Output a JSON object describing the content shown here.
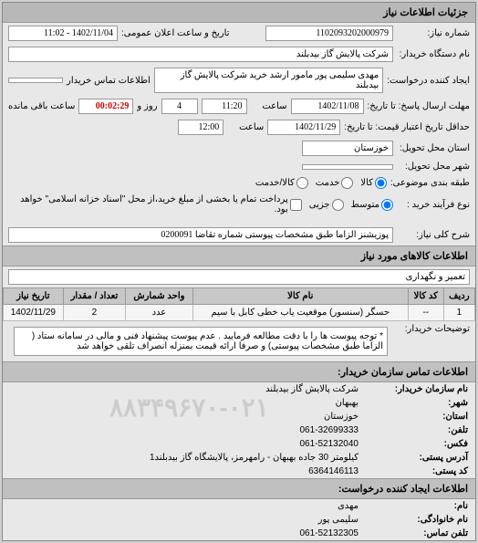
{
  "panel_title": "جزئیات اطلاعات نیاز",
  "fields": {
    "request_no_label": "شماره نیاز:",
    "request_no": "1102093202000979",
    "public_datetime_label": "تاریخ و ساعت اعلان عمومی:",
    "public_datetime": "1402/11/04 - 11:02",
    "buyer_org_label": "نام دستگاه خریدار:",
    "buyer_org": "شرکت پالایش گاز بیدبلند",
    "requester_label": "ایجاد کننده درخواست:",
    "requester": "مهدی سلیمی پور مامور ارشد خرید شرکت پالایش گاز بیدبلند",
    "buyer_contact_label": "اطلاعات تماس خریدار",
    "deadline_send_label": "مهلت ارسال پاسخ: تا تاریخ:",
    "deadline_date": "1402/11/08",
    "time_label": "ساعت",
    "deadline_time": "11:20",
    "days_left": "4",
    "days_label": "روز و",
    "timer": "00:02:29",
    "timer_label": "ساعت باقی مانده",
    "validity_label": "حداقل تاریخ اعتبار قیمت: تا تاریخ:",
    "validity_date": "1402/11/29",
    "validity_time": "12:00",
    "delivery_state_label": "استان محل تحویل:",
    "delivery_state": "خوزستان",
    "delivery_city_label": "شهر محل تحویل:",
    "delivery_city": "",
    "budget_group_label": "طبقه بندی موضوعی:",
    "budget_opt1": "کالا",
    "budget_opt2": "خدمت",
    "budget_opt3": "کالا/خدمت",
    "process_type_label": "نوع فرآیند خرید :",
    "proc_opt1": "متوسط",
    "proc_opt2": "جزیی",
    "proc_note": "پرداخت تمام یا بخشی از مبلغ خرید،از محل \"اسناد خزانه اسلامی\" خواهد بود.",
    "desc_label": "شرح کلی نیاز:",
    "desc": "پوزیشنز الزاما طبق مشخصات پیوستی شماره تقاضا 0200091",
    "goods_title": "اطلاعات کالاهای مورد نیاز",
    "goods_category": "تعمیر و نگهداری",
    "buyer_notes_label": "توضیحات خریدار:",
    "buyer_notes": "* توجه پیوست ها را با دقت مطالعه فرمایید . عدم پیوست پیشنهاد فنی و مالی در سامانه ستاد ( الزاما طبق مشخصات پیوستی) و صرفا ارائه قیمت بمنزله انصراف تلقی خواهد شد",
    "contact_title": "اطلاعات تماس سازمان خریدار:",
    "c_org_label": "نام سازمان خریدار:",
    "c_org": "شرکت پالایش گاز بیدبلند",
    "c_city_label": "شهر:",
    "c_city": "بهبهان",
    "c_state_label": "استان:",
    "c_state": "خوزستان",
    "c_phone_label": "تلفن:",
    "c_phone": "061-32699333",
    "c_fax_label": "فکس:",
    "c_fax": "061-52132040",
    "c_addr_label": "آدرس پستی:",
    "c_addr": "کیلومتر 30 جاده بهبهان - رامهرمز، پالایشگاه گاز بیدبلند1",
    "c_postal_label": "کد پستی:",
    "c_postal": "6364146113",
    "req_contact_title": "اطلاعات ایجاد کننده درخواست:",
    "r_name_label": "نام:",
    "r_name": "مهدی",
    "r_family_label": "نام خانوادگی:",
    "r_family": "سلیمی پور",
    "r_phone_label": "تلفن تماس:",
    "r_phone": "061-52132305"
  },
  "table": {
    "headers": [
      "ردیف",
      "کد کالا",
      "نام کالا",
      "واحد شمارش",
      "تعداد / مقدار",
      "تاریخ نیاز"
    ],
    "row": [
      "1",
      "--",
      "حسگر (سنسور) موقعیت یاب خطی کابل با سیم",
      "عدد",
      "2",
      "1402/11/29"
    ]
  },
  "watermark": "۸۸۳۴۹۶۷۰-۰۲۱"
}
